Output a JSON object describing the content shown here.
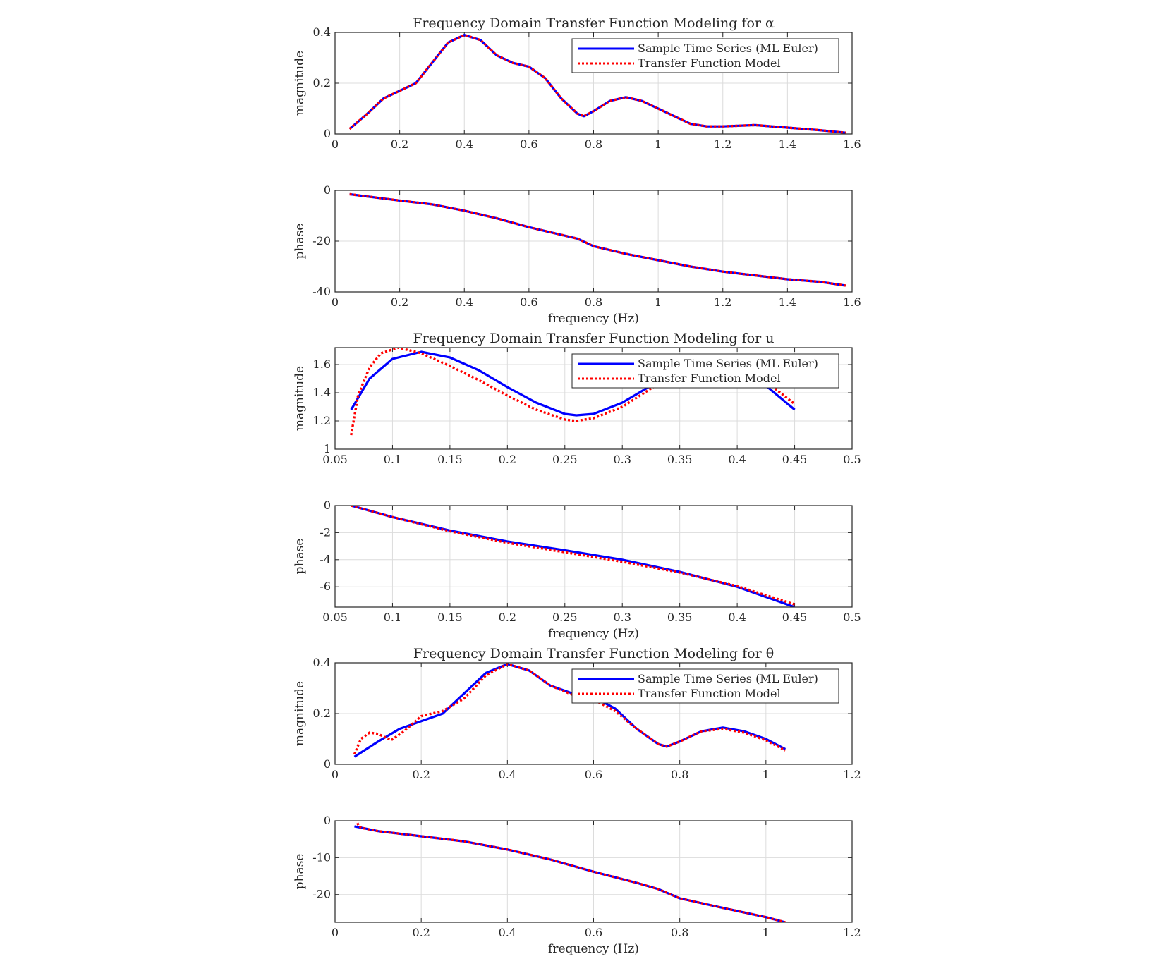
{
  "colors": {
    "series1": "#0000ff",
    "series2": "#ff0000",
    "grid": "#dcdcdc",
    "axes": "#262626"
  },
  "chart_data": [
    {
      "type": "line",
      "title": "Frequency Domain Transfer Function Modeling for α",
      "xlabel": "",
      "ylabel": "magnitude",
      "xlim": [
        0,
        1.6
      ],
      "ylim": [
        0,
        0.4
      ],
      "xticks": [
        "0",
        "0.2",
        "0.4",
        "0.6",
        "0.8",
        "1",
        "1.2",
        "1.4",
        "1.6"
      ],
      "yticks": [
        "0",
        "0.2",
        "0.4"
      ],
      "grid": true,
      "legend": {
        "placement": "top-right",
        "entries": [
          "Sample Time Series (ML Euler)",
          "Transfer Function Model"
        ]
      },
      "series": [
        {
          "name": "Sample Time Series (ML Euler)",
          "style": "solid",
          "x": [
            0.045,
            0.1,
            0.15,
            0.2,
            0.25,
            0.3,
            0.35,
            0.4,
            0.45,
            0.5,
            0.55,
            0.6,
            0.65,
            0.7,
            0.75,
            0.77,
            0.8,
            0.85,
            0.9,
            0.95,
            1.0,
            1.05,
            1.1,
            1.15,
            1.2,
            1.3,
            1.4,
            1.5,
            1.58
          ],
          "y": [
            0.02,
            0.08,
            0.14,
            0.17,
            0.2,
            0.28,
            0.36,
            0.39,
            0.37,
            0.31,
            0.28,
            0.265,
            0.22,
            0.14,
            0.08,
            0.07,
            0.09,
            0.13,
            0.145,
            0.13,
            0.1,
            0.07,
            0.04,
            0.03,
            0.03,
            0.035,
            0.025,
            0.015,
            0.005
          ]
        },
        {
          "name": "Transfer Function Model",
          "style": "dotted",
          "x": [
            0.045,
            0.1,
            0.15,
            0.2,
            0.25,
            0.3,
            0.35,
            0.4,
            0.45,
            0.5,
            0.55,
            0.6,
            0.65,
            0.7,
            0.75,
            0.77,
            0.8,
            0.85,
            0.9,
            0.95,
            1.0,
            1.05,
            1.1,
            1.15,
            1.2,
            1.3,
            1.4,
            1.5,
            1.58
          ],
          "y": [
            0.02,
            0.08,
            0.14,
            0.17,
            0.2,
            0.28,
            0.36,
            0.39,
            0.37,
            0.31,
            0.28,
            0.265,
            0.22,
            0.14,
            0.08,
            0.07,
            0.09,
            0.13,
            0.145,
            0.13,
            0.1,
            0.07,
            0.04,
            0.03,
            0.03,
            0.035,
            0.025,
            0.015,
            0.005
          ]
        }
      ]
    },
    {
      "type": "line",
      "title": "",
      "xlabel": "frequency (Hz)",
      "ylabel": "phase",
      "xlim": [
        0,
        1.6
      ],
      "ylim": [
        -40,
        0
      ],
      "xticks": [
        "0",
        "0.2",
        "0.4",
        "0.6",
        "0.8",
        "1",
        "1.2",
        "1.4",
        "1.6"
      ],
      "yticks": [
        "0",
        "-20",
        "-40"
      ],
      "grid": true,
      "series": [
        {
          "name": "Sample Time Series (ML Euler)",
          "style": "solid",
          "x": [
            0.045,
            0.2,
            0.3,
            0.4,
            0.5,
            0.6,
            0.7,
            0.75,
            0.8,
            0.9,
            1.0,
            1.1,
            1.2,
            1.3,
            1.4,
            1.5,
            1.58
          ],
          "y": [
            -1.5,
            -4,
            -5.5,
            -8,
            -11,
            -14.5,
            -17.5,
            -19,
            -22,
            -25,
            -27.5,
            -30,
            -32,
            -33.5,
            -35,
            -36,
            -37.5
          ]
        },
        {
          "name": "Transfer Function Model",
          "style": "dotted",
          "x": [
            0.045,
            0.2,
            0.3,
            0.4,
            0.5,
            0.6,
            0.7,
            0.75,
            0.8,
            0.9,
            1.0,
            1.1,
            1.2,
            1.3,
            1.4,
            1.5,
            1.58
          ],
          "y": [
            -1.5,
            -4,
            -5.5,
            -8,
            -11,
            -14.5,
            -17.5,
            -19,
            -22,
            -25,
            -27.5,
            -30,
            -32,
            -33.5,
            -35,
            -36,
            -37.5
          ]
        }
      ]
    },
    {
      "type": "line",
      "title": "Frequency Domain Transfer Function Modeling for u",
      "xlabel": "",
      "ylabel": "magnitude",
      "xlim": [
        0.05,
        0.5
      ],
      "ylim": [
        1,
        1.72
      ],
      "xticks": [
        "0.05",
        "0.1",
        "0.15",
        "0.2",
        "0.25",
        "0.3",
        "0.35",
        "0.4",
        "0.45",
        "0.5"
      ],
      "yticks": [
        "1",
        "1.2",
        "1.4",
        "1.6"
      ],
      "grid": true,
      "legend": {
        "placement": "top-right",
        "entries": [
          "Sample Time Series (ML Euler)",
          "Transfer Function Model"
        ]
      },
      "series": [
        {
          "name": "Sample Time Series (ML Euler)",
          "style": "solid",
          "x": [
            0.064,
            0.08,
            0.1,
            0.125,
            0.15,
            0.175,
            0.2,
            0.225,
            0.25,
            0.26,
            0.275,
            0.3,
            0.325,
            0.35,
            0.375,
            0.4,
            0.425,
            0.45
          ],
          "y": [
            1.28,
            1.5,
            1.64,
            1.69,
            1.65,
            1.56,
            1.44,
            1.33,
            1.25,
            1.24,
            1.25,
            1.33,
            1.45,
            1.55,
            1.62,
            1.58,
            1.45,
            1.28
          ]
        },
        {
          "name": "Transfer Function Model",
          "style": "dotted",
          "x": [
            0.064,
            0.07,
            0.08,
            0.09,
            0.105,
            0.125,
            0.15,
            0.175,
            0.2,
            0.225,
            0.25,
            0.26,
            0.275,
            0.3,
            0.325,
            0.35,
            0.375,
            0.4,
            0.425,
            0.45
          ],
          "y": [
            1.1,
            1.38,
            1.58,
            1.68,
            1.72,
            1.68,
            1.59,
            1.49,
            1.38,
            1.28,
            1.21,
            1.2,
            1.22,
            1.3,
            1.43,
            1.55,
            1.62,
            1.6,
            1.48,
            1.32
          ]
        }
      ]
    },
    {
      "type": "line",
      "title": "",
      "xlabel": "frequency (Hz)",
      "ylabel": "phase",
      "xlim": [
        0.05,
        0.5
      ],
      "ylim": [
        -7.5,
        0
      ],
      "xticks": [
        "0.05",
        "0.1",
        "0.15",
        "0.2",
        "0.25",
        "0.3",
        "0.35",
        "0.4",
        "0.45",
        "0.5"
      ],
      "yticks": [
        "0",
        "-2",
        "-4",
        "-6"
      ],
      "grid": true,
      "series": [
        {
          "name": "Sample Time Series (ML Euler)",
          "style": "solid",
          "x": [
            0.064,
            0.1,
            0.15,
            0.2,
            0.25,
            0.3,
            0.35,
            0.4,
            0.45
          ],
          "y": [
            0,
            -0.85,
            -1.85,
            -2.65,
            -3.3,
            -4.0,
            -4.9,
            -6.0,
            -7.5
          ]
        },
        {
          "name": "Transfer Function Model",
          "style": "dotted",
          "x": [
            0.064,
            0.1,
            0.15,
            0.2,
            0.25,
            0.3,
            0.35,
            0.4,
            0.45
          ],
          "y": [
            0,
            -0.85,
            -1.9,
            -2.75,
            -3.45,
            -4.15,
            -4.95,
            -5.95,
            -7.3
          ]
        }
      ]
    },
    {
      "type": "line",
      "title": "Frequency Domain Transfer Function Modeling for θ",
      "xlabel": "",
      "ylabel": "magnitude",
      "xlim": [
        0,
        1.2
      ],
      "ylim": [
        0,
        0.4
      ],
      "xticks": [
        "0",
        "0.2",
        "0.4",
        "0.6",
        "0.8",
        "1",
        "1.2"
      ],
      "yticks": [
        "0",
        "0.2",
        "0.4"
      ],
      "grid": true,
      "legend": {
        "placement": "top-right",
        "entries": [
          "Sample Time Series (ML Euler)",
          "Transfer Function Model"
        ]
      },
      "series": [
        {
          "name": "Sample Time Series (ML Euler)",
          "style": "solid",
          "x": [
            0.045,
            0.1,
            0.15,
            0.2,
            0.25,
            0.3,
            0.35,
            0.4,
            0.45,
            0.5,
            0.55,
            0.6,
            0.65,
            0.7,
            0.75,
            0.77,
            0.8,
            0.85,
            0.9,
            0.95,
            1.0,
            1.045
          ],
          "y": [
            0.03,
            0.09,
            0.14,
            0.17,
            0.2,
            0.28,
            0.36,
            0.395,
            0.37,
            0.31,
            0.28,
            0.265,
            0.22,
            0.14,
            0.08,
            0.07,
            0.09,
            0.13,
            0.145,
            0.13,
            0.1,
            0.06
          ]
        },
        {
          "name": "Transfer Function Model",
          "style": "dotted",
          "x": [
            0.045,
            0.06,
            0.08,
            0.1,
            0.13,
            0.16,
            0.2,
            0.25,
            0.3,
            0.35,
            0.4,
            0.45,
            0.5,
            0.55,
            0.6,
            0.65,
            0.7,
            0.75,
            0.77,
            0.8,
            0.85,
            0.9,
            0.95,
            1.0,
            1.045
          ],
          "y": [
            0.04,
            0.1,
            0.125,
            0.12,
            0.095,
            0.13,
            0.19,
            0.21,
            0.26,
            0.35,
            0.395,
            0.37,
            0.31,
            0.275,
            0.255,
            0.21,
            0.14,
            0.08,
            0.07,
            0.09,
            0.13,
            0.14,
            0.125,
            0.095,
            0.055
          ]
        }
      ]
    },
    {
      "type": "line",
      "title": "",
      "xlabel": "frequency (Hz)",
      "ylabel": "phase",
      "xlim": [
        0,
        1.2
      ],
      "ylim": [
        -27.5,
        0
      ],
      "xticks": [
        "0",
        "0.2",
        "0.4",
        "0.6",
        "0.8",
        "1",
        "1.2"
      ],
      "yticks": [
        "0",
        "-10",
        "-20"
      ],
      "grid": true,
      "series": [
        {
          "name": "Sample Time Series (ML Euler)",
          "style": "solid",
          "x": [
            0.045,
            0.1,
            0.2,
            0.3,
            0.4,
            0.5,
            0.6,
            0.7,
            0.75,
            0.8,
            0.9,
            1.0,
            1.045
          ],
          "y": [
            -1.5,
            -2.8,
            -4.2,
            -5.6,
            -7.8,
            -10.5,
            -13.8,
            -16.8,
            -18.5,
            -21,
            -23.6,
            -26.1,
            -27.5
          ]
        },
        {
          "name": "Transfer Function Model",
          "style": "dotted",
          "x": [
            0.045,
            0.05,
            0.055,
            0.065,
            0.1,
            0.2,
            0.3,
            0.4,
            0.5,
            0.6,
            0.7,
            0.75,
            0.8,
            0.9,
            1.0,
            1.045
          ],
          "y": [
            1.5,
            0,
            -1.5,
            -2.0,
            -2.8,
            -4.2,
            -5.6,
            -7.8,
            -10.5,
            -13.8,
            -16.8,
            -18.5,
            -21,
            -23.6,
            -26.1,
            -27.5
          ]
        }
      ]
    }
  ]
}
